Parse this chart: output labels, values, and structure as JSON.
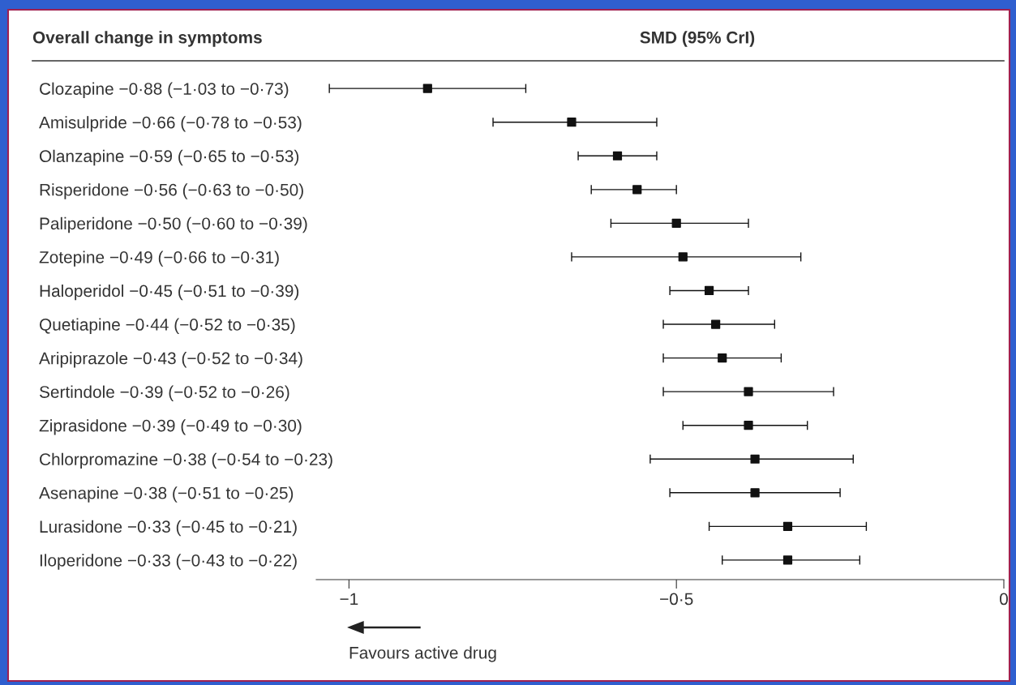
{
  "chart_data": {
    "type": "scatter",
    "orientation": "horizontal",
    "title": "Overall change in symptoms",
    "xlabel": "SMD (95% CrI)",
    "categories": [
      "Clozapine −0·88 (−1·03 to −0·73)",
      "Amisulpride −0·66 (−0·78 to −0·53)",
      "Olanzapine −0·59 (−0·65 to −0·53)",
      "Risperidone −0·56 (−0·63 to −0·50)",
      "Paliperidone −0·50 (−0·60 to −0·39)",
      "Zotepine −0·49 (−0·66 to −0·31)",
      "Haloperidol −0·45 (−0·51 to −0·39)",
      "Quetiapine −0·44 (−0·52 to −0·35)",
      "Aripiprazole −0·43 (−0·52 to −0·34)",
      "Sertindole −0·39 (−0·52 to −0·26)",
      "Ziprasidone −0·39 (−0·49 to −0·30)",
      "Chlorpromazine −0·38 (−0·54 to −0·23)",
      "Asenapine −0·38 (−0·51 to −0·25)",
      "Lurasidone −0·33 (−0·45 to −0·21)",
      "Iloperidone −0·33 (−0·43 to −0·22)"
    ],
    "values": [
      -0.88,
      -0.66,
      -0.59,
      -0.56,
      -0.5,
      -0.49,
      -0.45,
      -0.44,
      -0.43,
      -0.39,
      -0.39,
      -0.38,
      -0.38,
      -0.33,
      -0.33
    ],
    "errors": [
      [
        -1.03,
        -0.73
      ],
      [
        -0.78,
        -0.53
      ],
      [
        -0.65,
        -0.53
      ],
      [
        -0.63,
        -0.5
      ],
      [
        -0.6,
        -0.39
      ],
      [
        -0.66,
        -0.31
      ],
      [
        -0.51,
        -0.39
      ],
      [
        -0.52,
        -0.35
      ],
      [
        -0.52,
        -0.34
      ],
      [
        -0.52,
        -0.26
      ],
      [
        -0.49,
        -0.3
      ],
      [
        -0.54,
        -0.23
      ],
      [
        -0.51,
        -0.25
      ],
      [
        -0.45,
        -0.21
      ],
      [
        -0.43,
        -0.22
      ]
    ],
    "color": "#111111",
    "marker": "square",
    "xlim": [
      -1.05,
      0
    ],
    "xticks": [
      {
        "value": -1,
        "label": "−1"
      },
      {
        "value": -0.5,
        "label": "−0·5"
      },
      0
    ],
    "annotations": [
      "Favours active drug"
    ]
  }
}
